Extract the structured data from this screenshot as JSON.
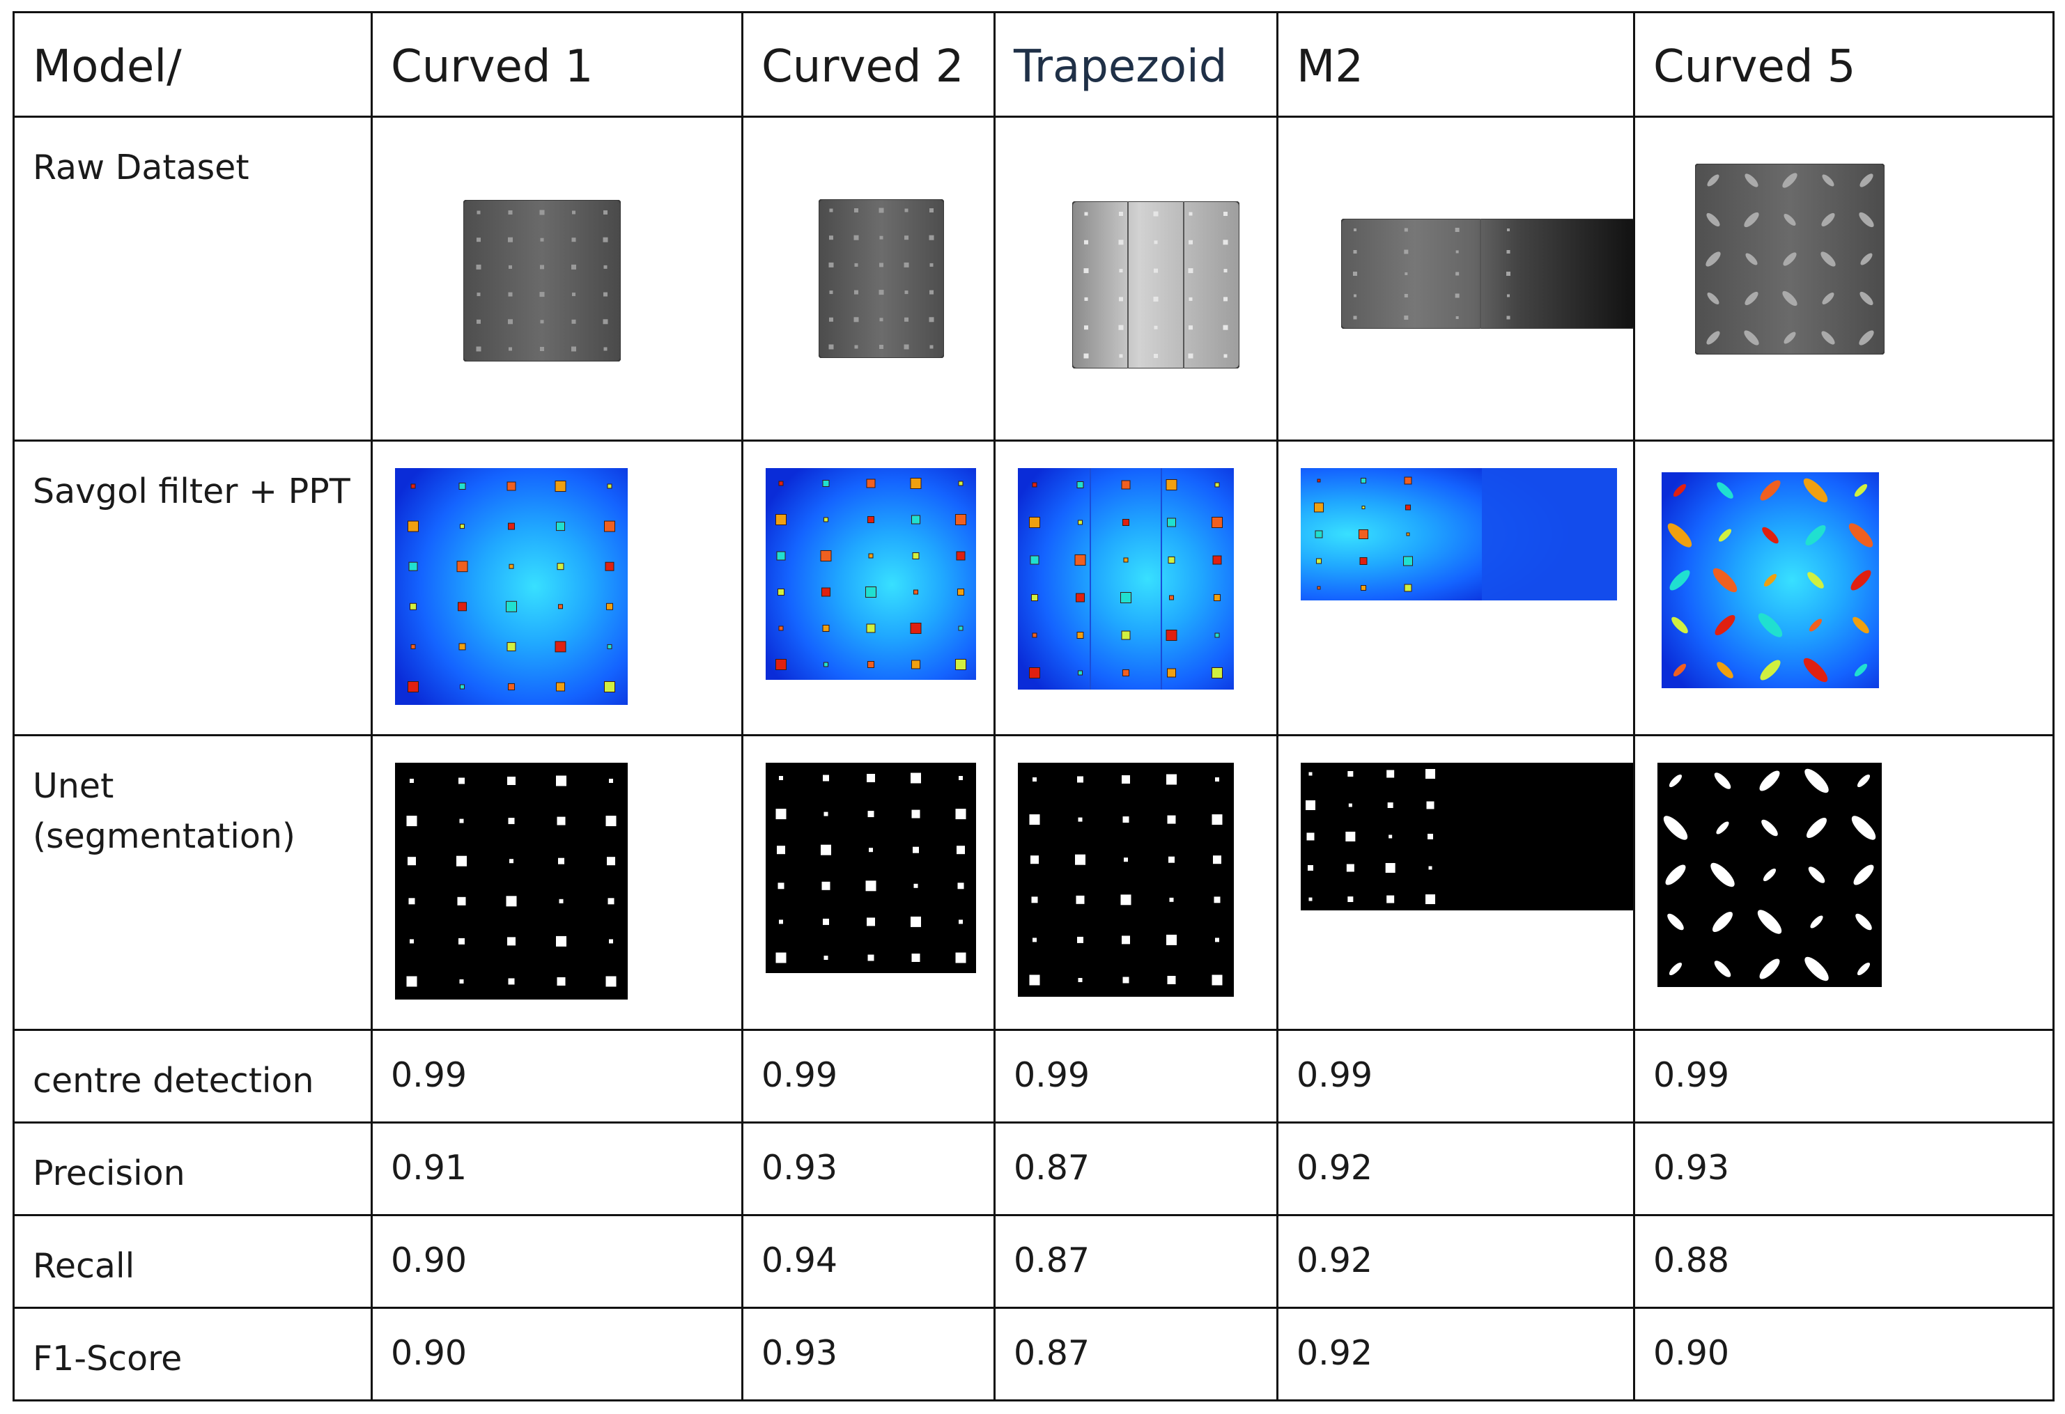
{
  "table": {
    "corner": "Model/",
    "columns": [
      "Curved 1",
      "Curved 2",
      "Trapezoid",
      "M2",
      "Curved 5"
    ],
    "rows": {
      "raw": {
        "label": "Raw Dataset",
        "image": "raw-thermal-image"
      },
      "savgol": {
        "label": "Savgol filter + PPT",
        "image": "phase-map-image"
      },
      "unet": {
        "label": "Unet\n(segmentation)",
        "image": "segmentation-mask-image"
      }
    },
    "metrics": [
      {
        "label": "centre detection",
        "values": [
          "0.99",
          "0.99",
          "0.99",
          "0.99",
          "0.99"
        ]
      },
      {
        "label": "Precision",
        "values": [
          "0.91",
          "0.93",
          "0.87",
          "0.92",
          "0.93"
        ]
      },
      {
        "label": "Recall",
        "values": [
          "0.90",
          "0.94",
          "0.87",
          "0.92",
          "0.88"
        ]
      },
      {
        "label": "F1-Score",
        "values": [
          "0.90",
          "0.93",
          "0.87",
          "0.92",
          "0.90"
        ]
      }
    ]
  }
}
